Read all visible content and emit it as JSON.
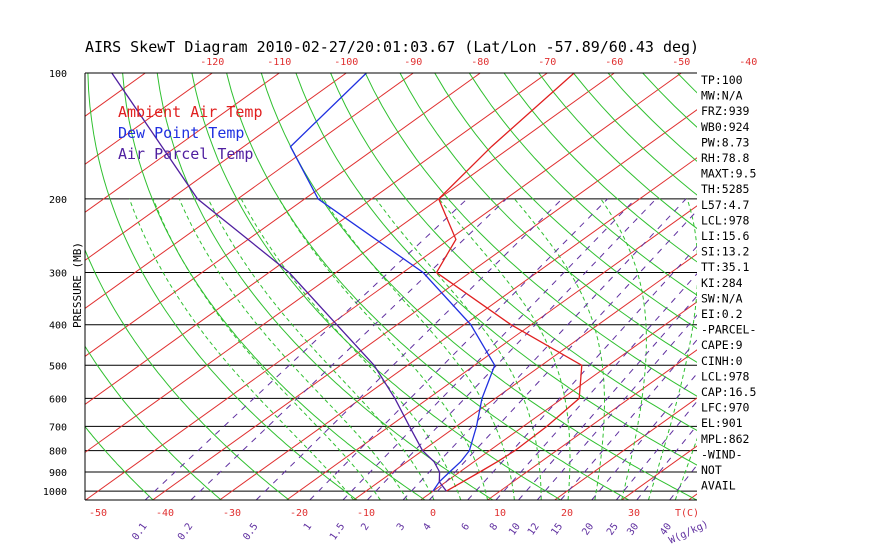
{
  "chart_data": {
    "type": "line",
    "title": "AIRS SkewT Diagram 2010-02-27/20:01:03.67 (Lat/Lon -57.89/60.43 deg)",
    "ylabel": "PRESSURE (MB)",
    "xlabel_bottom_unit": "T(C)",
    "mixing_ratio_unit": "W(g/kg)",
    "y_scale": "log",
    "ylim": [
      1050,
      100
    ],
    "pressure_ticks": [
      "100",
      "200",
      "300",
      "400",
      "500",
      "600",
      "700",
      "800",
      "900",
      "1000"
    ],
    "top_temp_ticks": [
      "-120",
      "-110",
      "-100",
      "-90",
      "-80",
      "-70",
      "-60",
      "-50",
      "-40"
    ],
    "bottom_temp_ticks": [
      "-50",
      "-40",
      "-30",
      "-20",
      "-10",
      "0",
      "10",
      "20",
      "30"
    ],
    "mixing_ratio_labels": [
      "0.1",
      "0.2",
      "0.5",
      "1",
      "1.5",
      "2",
      "3",
      "4",
      "6",
      "8",
      "10",
      "12",
      "15",
      "20",
      "25",
      "30",
      "40"
    ],
    "legend": [
      {
        "name": "Ambient Air Temp",
        "color": "#e02020"
      },
      {
        "name": "Dew Point Temp",
        "color": "#2030e0"
      },
      {
        "name": "Air Parcel Temp",
        "color": "#5020a0"
      }
    ],
    "series": [
      {
        "name": "Ambient Air Temp",
        "color": "#e02020",
        "points": [
          [
            1000,
            2
          ],
          [
            950,
            2.5
          ],
          [
            900,
            3
          ],
          [
            850,
            3.5
          ],
          [
            800,
            3.8
          ],
          [
            700,
            3.5
          ],
          [
            600,
            2.5
          ],
          [
            500,
            -4
          ],
          [
            400,
            -23
          ],
          [
            300,
            -45
          ],
          [
            250,
            -49
          ],
          [
            200,
            -60
          ],
          [
            150,
            -63
          ],
          [
            100,
            -66
          ]
        ]
      },
      {
        "name": "Dew Point Temp",
        "color": "#2030e0",
        "points": [
          [
            1000,
            0
          ],
          [
            950,
            -1
          ],
          [
            900,
            -1.5
          ],
          [
            850,
            -2
          ],
          [
            800,
            -3
          ],
          [
            700,
            -7
          ],
          [
            600,
            -12
          ],
          [
            500,
            -17
          ],
          [
            400,
            -29
          ],
          [
            300,
            -47
          ],
          [
            200,
            -78
          ],
          [
            150,
            -93
          ],
          [
            100,
            -97
          ]
        ]
      },
      {
        "name": "Air Parcel Temp",
        "color": "#5020a0",
        "points": [
          [
            1000,
            2
          ],
          [
            950,
            -1
          ],
          [
            900,
            -3
          ],
          [
            850,
            -6
          ],
          [
            800,
            -10
          ],
          [
            700,
            -17
          ],
          [
            600,
            -25
          ],
          [
            500,
            -35
          ],
          [
            400,
            -49
          ],
          [
            300,
            -67
          ],
          [
            200,
            -96
          ],
          [
            100,
            -135
          ]
        ]
      }
    ],
    "info_list": [
      "TP:100",
      "MW:N/A",
      "FRZ:939",
      "WB0:924",
      "PW:8.73",
      "RH:78.8",
      "MAXT:9.5",
      "TH:5285",
      "L57:4.7",
      "LCL:978",
      "LI:15.6",
      "SI:13.2",
      "TT:35.1",
      "KI:284",
      "SW:N/A",
      "EI:0.2",
      "-PARCEL-",
      "CAPE:9",
      "CINH:0",
      "LCL:978",
      "CAP:16.5",
      "LFC:970",
      "EL:901",
      "MPL:862",
      "-WIND-",
      "NOT",
      "AVAIL"
    ]
  },
  "colors": {
    "isotherm": "#e03030",
    "dry_adiabat": "#30c030",
    "moist_adiabat": "#30c030",
    "mixing_ratio": "#6030a0",
    "bottom_labels": "#e03030",
    "top_labels": "#e03030",
    "mixing_labels": "#6030a0",
    "frame": "#000000"
  }
}
